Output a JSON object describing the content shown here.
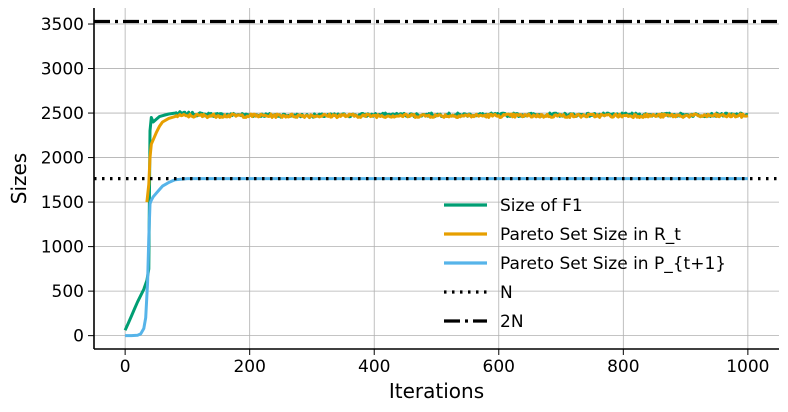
{
  "chart_data": {
    "type": "line",
    "xlabel": "Iterations",
    "ylabel": "Sizes",
    "xlim": [
      -50,
      1050
    ],
    "ylim": [
      -150,
      3680
    ],
    "x_ticks": [
      0,
      200,
      400,
      600,
      800,
      1000
    ],
    "y_ticks": [
      0,
      500,
      1000,
      1500,
      2000,
      2500,
      3000,
      3500
    ],
    "grid": true,
    "legend_position": "lower-right",
    "series": [
      {
        "name": "Size of F1",
        "color": "#009e73",
        "style": "solid",
        "x": [
          0,
          5,
          10,
          15,
          20,
          25,
          30,
          35,
          38,
          40,
          42,
          45,
          50,
          55,
          60,
          70,
          80,
          100,
          150,
          200,
          300,
          400,
          500,
          600,
          700,
          800,
          900,
          1000
        ],
        "y": [
          60,
          140,
          220,
          300,
          380,
          450,
          520,
          620,
          750,
          2300,
          2450,
          2400,
          2430,
          2460,
          2470,
          2490,
          2500,
          2490,
          2480,
          2480,
          2470,
          2480,
          2480,
          2480,
          2480,
          2480,
          2480,
          2480
        ]
      },
      {
        "name": "Pareto Set Size in R_t",
        "color": "#e69f00",
        "style": "solid",
        "x": [
          35,
          38,
          40,
          42,
          45,
          50,
          55,
          60,
          70,
          80,
          90,
          100,
          150,
          200,
          300,
          400,
          500,
          600,
          700,
          800,
          900,
          1000
        ],
        "y": [
          1500,
          1700,
          2000,
          2150,
          2200,
          2280,
          2350,
          2400,
          2440,
          2460,
          2470,
          2470,
          2470,
          2470,
          2470,
          2470,
          2470,
          2470,
          2470,
          2470,
          2470,
          2470
        ]
      },
      {
        "name": "Pareto Set Size in P_{t+1}",
        "color": "#56b4e9",
        "style": "solid",
        "x": [
          0,
          10,
          20,
          25,
          30,
          33,
          36,
          38,
          40,
          42,
          45,
          50,
          55,
          60,
          65,
          70,
          80,
          100,
          200,
          300,
          400,
          500,
          600,
          700,
          800,
          900,
          1000
        ],
        "y": [
          0,
          0,
          5,
          20,
          80,
          200,
          600,
          1100,
          1480,
          1520,
          1560,
          1600,
          1640,
          1680,
          1700,
          1720,
          1750,
          1764,
          1764,
          1764,
          1764,
          1764,
          1764,
          1764,
          1764,
          1764,
          1764
        ]
      },
      {
        "name": "N",
        "color": "#000000",
        "style": "dotted",
        "constant": 1764
      },
      {
        "name": "2N",
        "color": "#000000",
        "style": "dashdot",
        "constant": 3528
      }
    ]
  }
}
